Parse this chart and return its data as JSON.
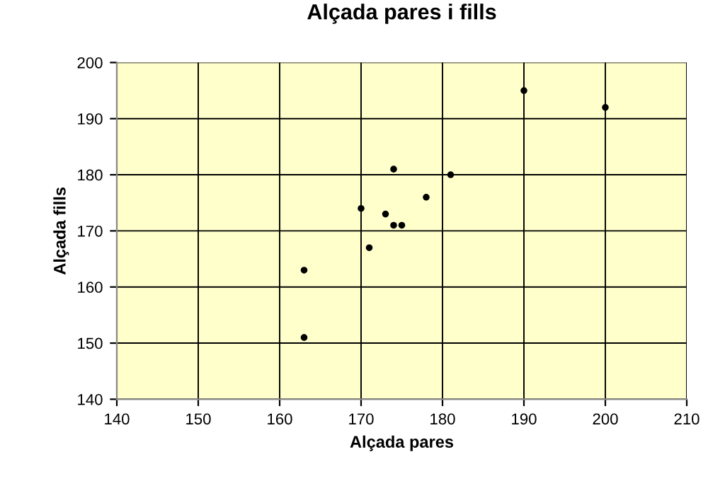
{
  "chart_data": {
    "type": "scatter",
    "title": "Alçada pares i fills",
    "xlabel": "Alçada pares",
    "ylabel": "Alçada fills",
    "x": [
      163,
      163,
      170,
      171,
      173,
      174,
      175,
      174,
      178,
      181,
      190,
      200
    ],
    "values": [
      163,
      151,
      174,
      167,
      173,
      171,
      171,
      181,
      176,
      180,
      195,
      192
    ],
    "color": "#000000",
    "marker": "circle",
    "xlim": [
      140,
      210
    ],
    "xticks": [
      140,
      150,
      160,
      170,
      180,
      190,
      200,
      210
    ],
    "ylim": [
      140,
      200
    ],
    "yticks": [
      140,
      150,
      160,
      170,
      180,
      190,
      200
    ],
    "grid": true
  }
}
